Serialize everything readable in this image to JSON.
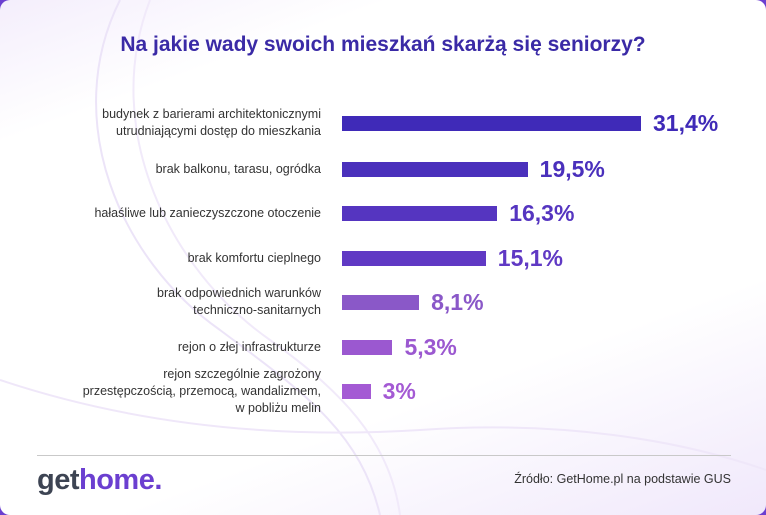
{
  "chart_data": {
    "type": "bar",
    "orientation": "horizontal",
    "title": "Na jakie wady swoich mieszkań skarżą się seniorzy?",
    "categories": [
      [
        "budynek z barierami architektonicznymi",
        "utrudniającymi dostęp do mieszkania"
      ],
      [
        "brak balkonu, tarasu, ogródka"
      ],
      [
        "hałaśliwe lub zanieczyszczone otoczenie"
      ],
      [
        "brak komfortu cieplnego"
      ],
      [
        "brak odpowiednich warunków",
        "techniczno-sanitarnych"
      ],
      [
        "rejon o złej infrastrukturze"
      ],
      [
        "rejon szczególnie zagrożony",
        "przestępczością, przemocą, wandalizmem,",
        "w pobliżu melin"
      ]
    ],
    "values": [
      31.4,
      19.5,
      16.3,
      15.1,
      8.1,
      5.3,
      3
    ],
    "value_labels": [
      "31,4%",
      "19,5%",
      "16,3%",
      "15,1%",
      "8,1%",
      "5,3%",
      "3%"
    ],
    "colors": [
      "#3f2ab8",
      "#4a30bc",
      "#5535c0",
      "#6039c4",
      "#8a58c8",
      "#9b58d0",
      "#a45ad4"
    ],
    "unit": "%",
    "xlim": [
      0,
      31.4
    ]
  },
  "footer": {
    "logo_get": "get",
    "logo_home": "home",
    "logo_dot": ".",
    "source": "Źródło: GetHome.pl na podstawie GUS"
  }
}
